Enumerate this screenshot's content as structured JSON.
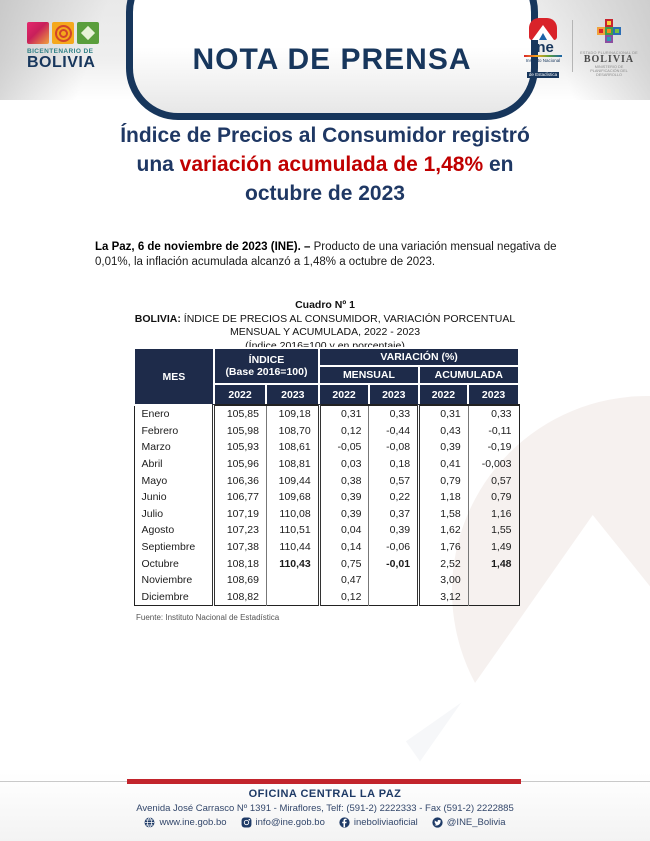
{
  "colors": {
    "navy": "#17365c",
    "table_header_navy": "#1e2b4a",
    "title_blue": "#1f3864",
    "accent_red": "#c00000",
    "footer_bar_red": "#c2242c"
  },
  "header": {
    "banner_title": "NOTA DE PRENSA",
    "bicentenario": {
      "line1": "BICENTENARIO DE",
      "line2": "BOLIVIA"
    },
    "ine_logo": {
      "word": "ine",
      "sub1": "Instituto Nacional",
      "sub2": "de Estadística"
    },
    "bolivia_logo": {
      "line1": "ESTADO PLURINACIONAL DE",
      "line2": "BOLIVIA",
      "line3": "MINISTERIO DE PLANIFICACIÓN DEL DESARROLLO"
    }
  },
  "title": {
    "line1": "Índice de Precios al Consumidor registró",
    "line2_pre": "una ",
    "line2_red": "variación acumulada de 1,48%",
    "line2_post": " en",
    "line3": "octubre de 2023"
  },
  "paragraph": {
    "lead": "La Paz, 6 de noviembre de 2023 (INE). –",
    "body": "  Producto de una variación mensual negativa de 0,01%, la inflación acumulada alcanzó a 1,48% a octubre de 2023."
  },
  "table": {
    "caption1": "Cuadro Nº 1",
    "caption2_bold": "BOLIVIA:",
    "caption2_rest": " ÍNDICE DE PRECIOS AL CONSUMIDOR, VARIACIÓN PORCENTUAL",
    "caption3": "MENSUAL Y ACUMULADA, 2022 - 2023",
    "caption4": "(Índice 2016=100 y en porcentaje)",
    "col_mes": "MES",
    "col_indice_l1": "ÍNDICE",
    "col_indice_l2": "(Base 2016=100)",
    "col_variacion": "VARIACIÓN (%)",
    "col_mensual": "MENSUAL",
    "col_acumulada": "ACUMULADA",
    "year_headers": [
      "2022",
      "2023",
      "2022",
      "2023",
      "2022",
      "2023"
    ],
    "rows": [
      {
        "month": "Enero",
        "values": [
          "105,85",
          "109,18",
          "0,31",
          "0,33",
          "0,31",
          "0,33"
        ],
        "bold": []
      },
      {
        "month": "Febrero",
        "values": [
          "105,98",
          "108,70",
          "0,12",
          "-0,44",
          "0,43",
          "-0,11"
        ],
        "bold": []
      },
      {
        "month": "Marzo",
        "values": [
          "105,93",
          "108,61",
          "-0,05",
          "-0,08",
          "0,39",
          "-0,19"
        ],
        "bold": []
      },
      {
        "month": "Abril",
        "values": [
          "105,96",
          "108,81",
          "0,03",
          "0,18",
          "0,41",
          "-0,003"
        ],
        "bold": []
      },
      {
        "month": "Mayo",
        "values": [
          "106,36",
          "109,44",
          "0,38",
          "0,57",
          "0,79",
          "0,57"
        ],
        "bold": []
      },
      {
        "month": "Junio",
        "values": [
          "106,77",
          "109,68",
          "0,39",
          "0,22",
          "1,18",
          "0,79"
        ],
        "bold": []
      },
      {
        "month": "Julio",
        "values": [
          "107,19",
          "110,08",
          "0,39",
          "0,37",
          "1,58",
          "1,16"
        ],
        "bold": []
      },
      {
        "month": "Agosto",
        "values": [
          "107,23",
          "110,51",
          "0,04",
          "0,39",
          "1,62",
          "1,55"
        ],
        "bold": []
      },
      {
        "month": "Septiembre",
        "values": [
          "107,38",
          "110,44",
          "0,14",
          "-0,06",
          "1,76",
          "1,49"
        ],
        "bold": []
      },
      {
        "month": "Octubre",
        "values": [
          "108,18",
          "110,43",
          "0,75",
          "-0,01",
          "2,52",
          "1,48"
        ],
        "bold": [
          1,
          3,
          5
        ]
      },
      {
        "month": "Noviembre",
        "values": [
          "108,69",
          "",
          "0,47",
          "",
          "3,00",
          ""
        ],
        "bold": []
      },
      {
        "month": "Diciembre",
        "values": [
          "108,82",
          "",
          "0,12",
          "",
          "3,12",
          ""
        ],
        "bold": []
      }
    ],
    "source": "Fuente: Instituto Nacional de Estadística"
  },
  "footer": {
    "office_title": "OFICINA CENTRAL LA PAZ",
    "address": "Avenida José Carrasco Nº 1391 - Miraflores, Telf: (591-2) 2222333 - Fax (591-2) 2222885",
    "social": [
      {
        "icon": "globe-icon",
        "label": "www.ine.gob.bo"
      },
      {
        "icon": "instagram-icon",
        "label": "info@ine.gob.bo"
      },
      {
        "icon": "facebook-icon",
        "label": "ineboliviaoficial"
      },
      {
        "icon": "twitter-icon",
        "label": "@INE_Bolivia"
      }
    ]
  }
}
